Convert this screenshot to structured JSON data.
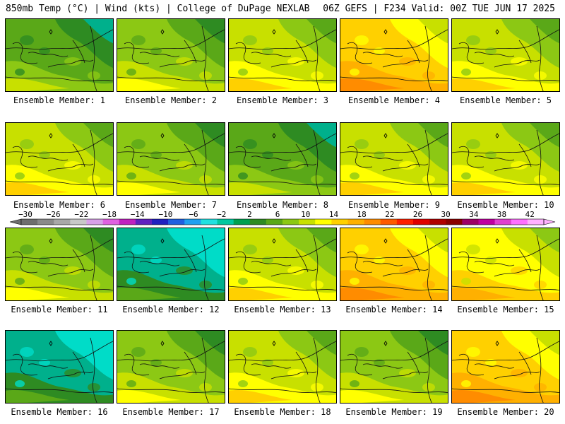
{
  "header": {
    "left": "850mb Temp (°C) | Wind (kts) | College of DuPage NEXLAB",
    "right": "06Z GEFS | F234 Valid: 00Z TUE JUN 17 2025"
  },
  "members": [
    {
      "label": "Ensemble Member: 1",
      "warmth": 0.35
    },
    {
      "label": "Ensemble Member: 2",
      "warmth": 0.4
    },
    {
      "label": "Ensemble Member: 3",
      "warmth": 0.55
    },
    {
      "label": "Ensemble Member: 4",
      "warmth": 0.8
    },
    {
      "label": "Ensemble Member: 5",
      "warmth": 0.55
    },
    {
      "label": "Ensemble Member: 6",
      "warmth": 0.55
    },
    {
      "label": "Ensemble Member: 7",
      "warmth": 0.45
    },
    {
      "label": "Ensemble Member: 8",
      "warmth": 0.35
    },
    {
      "label": "Ensemble Member: 9",
      "warmth": 0.5
    },
    {
      "label": "Ensemble Member: 10",
      "warmth": 0.6
    },
    {
      "label": "Ensemble Member: 11",
      "warmth": 0.45
    },
    {
      "label": "Ensemble Member: 12",
      "warmth": 0.1
    },
    {
      "label": "Ensemble Member: 13",
      "warmth": 0.6
    },
    {
      "label": "Ensemble Member: 14",
      "warmth": 0.75
    },
    {
      "label": "Ensemble Member: 15",
      "warmth": 0.65
    },
    {
      "label": "Ensemble Member: 16",
      "warmth": 0.15
    },
    {
      "label": "Ensemble Member: 17",
      "warmth": 0.45
    },
    {
      "label": "Ensemble Member: 18",
      "warmth": 0.55
    },
    {
      "label": "Ensemble Member: 19",
      "warmth": 0.4
    },
    {
      "label": "Ensemble Member: 20",
      "warmth": 0.75
    }
  ],
  "colorbar": {
    "ticks": [
      "−30",
      "−26",
      "−22",
      "−18",
      "−14",
      "−10",
      "−6",
      "−2",
      "2",
      "6",
      "10",
      "14",
      "18",
      "22",
      "26",
      "30",
      "34",
      "38",
      "42"
    ],
    "colors": [
      "#6e6e6e",
      "#8a8a8a",
      "#a8a8a8",
      "#c8c8c8",
      "#d8a0e8",
      "#e060e0",
      "#c020c0",
      "#6020c0",
      "#2020c0",
      "#2060e0",
      "#20a0f0",
      "#20e0e0",
      "#00c8a0",
      "#00a050",
      "#2e8b22",
      "#5aa818",
      "#8cc814",
      "#c8e000",
      "#ffff00",
      "#ffd000",
      "#ffb000",
      "#ff8c00",
      "#ff5a00",
      "#ff2000",
      "#e00000",
      "#b00000",
      "#8b0000",
      "#9e0066",
      "#c000a0",
      "#e040d0",
      "#ff70ff",
      "#ffb0ff"
    ]
  }
}
